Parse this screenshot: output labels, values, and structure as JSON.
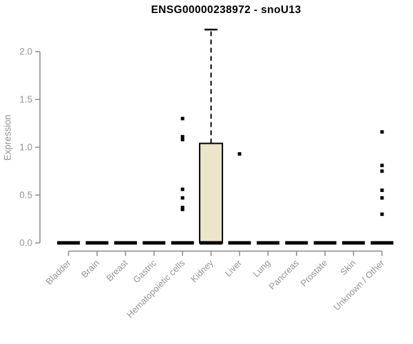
{
  "chart_data": {
    "type": "boxplot",
    "title": "ENSG00000238972 - snoU13",
    "ylabel": "Expression",
    "xlabel": "",
    "ylim": [
      0,
      2.3
    ],
    "yticks": [
      0,
      0.5,
      1,
      1.5,
      2
    ],
    "ytick_labels": [
      "0.0",
      "0.5",
      "1.0",
      "1.5",
      "2.0"
    ],
    "grid": false,
    "legend": "none",
    "colors": {
      "box_fill": "#EBE6C9",
      "box_stroke": "#000000",
      "outlier": "#000000",
      "axis": "#8a8a8a",
      "tick_text": "#949494",
      "title_text": "#000000"
    },
    "categories": [
      "Bladder",
      "Brain",
      "Breast",
      "Gastric",
      "Hematopoietic cells",
      "Kidney",
      "Liver",
      "Lung",
      "Pancreas",
      "Prostate",
      "Skin",
      "Unknown / Other"
    ],
    "series": [
      {
        "category": "Bladder",
        "min": 0,
        "q1": 0,
        "median": 0,
        "q3": 0,
        "max": 0,
        "outliers": []
      },
      {
        "category": "Brain",
        "min": 0,
        "q1": 0,
        "median": 0,
        "q3": 0,
        "max": 0,
        "outliers": []
      },
      {
        "category": "Breast",
        "min": 0,
        "q1": 0,
        "median": 0,
        "q3": 0,
        "max": 0,
        "outliers": []
      },
      {
        "category": "Gastric",
        "min": 0,
        "q1": 0,
        "median": 0,
        "q3": 0,
        "max": 0,
        "outliers": []
      },
      {
        "category": "Hematopoietic cells",
        "min": 0,
        "q1": 0,
        "median": 0,
        "q3": 0,
        "max": 0,
        "outliers": [
          1.3,
          1.11,
          1.08,
          0.56,
          0.47,
          0.37,
          0.35
        ]
      },
      {
        "category": "Kidney",
        "min": 0,
        "q1": 0,
        "median": 0,
        "q3": 1.04,
        "max": 2.23,
        "outliers": []
      },
      {
        "category": "Liver",
        "min": 0,
        "q1": 0,
        "median": 0,
        "q3": 0,
        "max": 0,
        "outliers": [
          0.93
        ]
      },
      {
        "category": "Lung",
        "min": 0,
        "q1": 0,
        "median": 0,
        "q3": 0,
        "max": 0,
        "outliers": []
      },
      {
        "category": "Pancreas",
        "min": 0,
        "q1": 0,
        "median": 0,
        "q3": 0,
        "max": 0,
        "outliers": []
      },
      {
        "category": "Prostate",
        "min": 0,
        "q1": 0,
        "median": 0,
        "q3": 0,
        "max": 0,
        "outliers": []
      },
      {
        "category": "Skin",
        "min": 0,
        "q1": 0,
        "median": 0,
        "q3": 0,
        "max": 0,
        "outliers": []
      },
      {
        "category": "Unknown / Other",
        "min": 0,
        "q1": 0,
        "median": 0,
        "q3": 0,
        "max": 0,
        "outliers": [
          1.16,
          0.81,
          0.75,
          0.55,
          0.47,
          0.3
        ]
      }
    ]
  }
}
